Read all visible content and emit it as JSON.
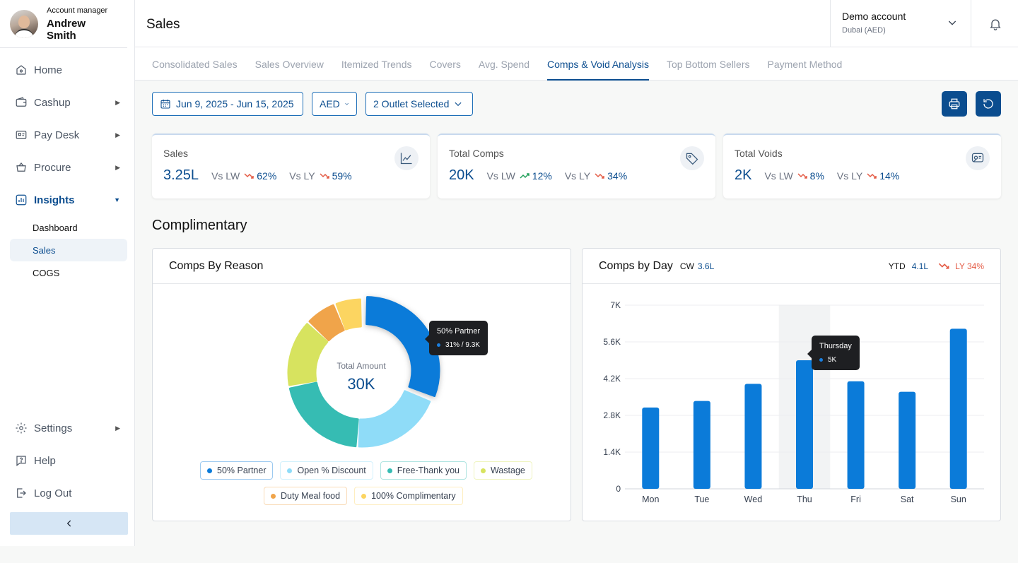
{
  "profile": {
    "role": "Account manager",
    "name": "Andrew Smith"
  },
  "nav": {
    "home": "Home",
    "cashup": "Cashup",
    "paydesk": "Pay Desk",
    "procure": "Procure",
    "insights": "Insights",
    "sub": {
      "dashboard": "Dashboard",
      "sales": "Sales",
      "cogs": "COGS"
    },
    "settings": "Settings",
    "help": "Help",
    "logout": "Log Out"
  },
  "header": {
    "title": "Sales",
    "account_name": "Demo account",
    "account_sub": "Dubai (AED)"
  },
  "tabs": [
    "Consolidated Sales",
    "Sales Overview",
    "Itemized Trends",
    "Covers",
    "Avg. Spend",
    "Comps & Void Analysis",
    "Top Bottom Sellers",
    "Payment Method"
  ],
  "active_tab": "Comps & Void Analysis",
  "filters": {
    "date_range": "Jun 9, 2025 - Jun 15, 2025",
    "currency": "AED",
    "outlets": "2 Outlet Selected"
  },
  "kpis": [
    {
      "label": "Sales",
      "value": "3.25L",
      "lw_label": "Vs LW",
      "lw": "62%",
      "lw_trend": "down",
      "ly_label": "Vs LY",
      "ly": "59%",
      "ly_trend": "down"
    },
    {
      "label": "Total Comps",
      "value": "20K",
      "lw_label": "Vs LW",
      "lw": "12%",
      "lw_trend": "up",
      "ly_label": "Vs LY",
      "ly": "34%",
      "ly_trend": "down"
    },
    {
      "label": "Total Voids",
      "value": "2K",
      "lw_label": "Vs LW",
      "lw": "8%",
      "lw_trend": "down",
      "ly_label": "Vs LY",
      "ly": "14%",
      "ly_trend": "down"
    }
  ],
  "section_title": "Complimentary",
  "comps_by_reason": {
    "title": "Comps By Reason",
    "center_label": "Total Amount",
    "center_value": "30K",
    "tooltip": {
      "title": "50% Partner",
      "value": "31% / 9.3K"
    },
    "legend": [
      {
        "label": "50% Partner",
        "color": "#0b7bd9"
      },
      {
        "label": "Open % Discount",
        "color": "#8fdcf8"
      },
      {
        "label": "Free-Thank you",
        "color": "#36bcb3"
      },
      {
        "label": "Wastage",
        "color": "#d7e35f"
      },
      {
        "label": "Duty Meal food",
        "color": "#f0a44a"
      },
      {
        "label": "100% Complimentary",
        "color": "#fcd561"
      }
    ]
  },
  "comps_by_day": {
    "title": "Comps by Day",
    "cw_label": "CW",
    "cw_value": "3.6L",
    "ytd_label": "YTD",
    "ytd_value": "4.1L",
    "ly_text": "LY 34%",
    "tooltip": {
      "title": "Thursday",
      "value": "5K"
    },
    "highlight_color": "#0b7bd9"
  },
  "chart_data": [
    {
      "type": "pie",
      "title": "Comps By Reason",
      "categories": [
        "50% Partner",
        "Open % Discount",
        "Free-Thank you",
        "Wastage",
        "Duty Meal food",
        "100% Complimentary"
      ],
      "values": [
        31,
        20,
        21,
        15,
        7,
        6
      ],
      "colors": [
        "#0b7bd9",
        "#8fdcf8",
        "#36bcb3",
        "#d7e35f",
        "#f0a44a",
        "#fcd561"
      ]
    },
    {
      "type": "bar",
      "title": "Comps by Day",
      "categories": [
        "Mon",
        "Tue",
        "Wed",
        "Thu",
        "Fri",
        "Sat",
        "Sun"
      ],
      "values": [
        3100,
        3350,
        4000,
        4900,
        4100,
        3700,
        6100
      ],
      "y_ticks": [
        "0",
        "1.4K",
        "2.8K",
        "4.2K",
        "5.6K",
        "7K"
      ],
      "ylim": [
        0,
        7000
      ],
      "grid": true,
      "highlight": "Thu"
    }
  ]
}
